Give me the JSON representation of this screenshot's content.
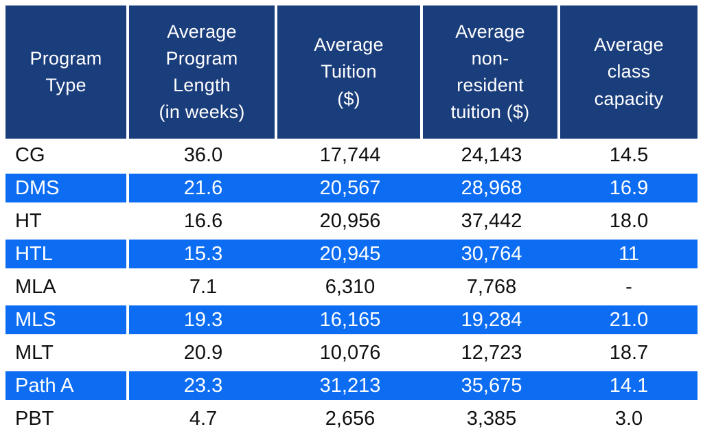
{
  "colors": {
    "header_navy": "#1a3d7c",
    "highlight_blue": "#0d6df2",
    "body_text": "#101010",
    "header_text": "#ffffff"
  },
  "table": {
    "columns": [
      {
        "label": "Program\nType"
      },
      {
        "label": "Average\nProgram\nLength\n(in weeks)"
      },
      {
        "label": "Average\nTuition\n($)"
      },
      {
        "label": "Average\nnon-\nresident\ntuition ($)"
      },
      {
        "label": "Average\nclass\ncapacity"
      }
    ],
    "rows": [
      {
        "cells": [
          "CG",
          "36.0",
          "17,744",
          "24,143",
          "14.5"
        ],
        "highlighted": false
      },
      {
        "cells": [
          "DMS",
          "21.6",
          "20,567",
          "28,968",
          "16.9"
        ],
        "highlighted": true
      },
      {
        "cells": [
          "HT",
          "16.6",
          "20,956",
          "37,442",
          "18.0"
        ],
        "highlighted": false
      },
      {
        "cells": [
          "HTL",
          "15.3",
          "20,945",
          "30,764",
          "11"
        ],
        "highlighted": true
      },
      {
        "cells": [
          "MLA",
          "7.1",
          "6,310",
          "7,768",
          "-"
        ],
        "highlighted": false
      },
      {
        "cells": [
          "MLS",
          "19.3",
          "16,165",
          "19,284",
          "21.0"
        ],
        "highlighted": true
      },
      {
        "cells": [
          "MLT",
          "20.9",
          "10,076",
          "12,723",
          "18.7"
        ],
        "highlighted": false
      },
      {
        "cells": [
          "Path A",
          "23.3",
          "31,213",
          "35,675",
          "14.1"
        ],
        "highlighted": true
      },
      {
        "cells": [
          "PBT",
          "4.7",
          "2,656",
          "3,385",
          "3.0"
        ],
        "highlighted": false
      }
    ]
  },
  "chart_data": {
    "type": "table",
    "title": "",
    "columns": [
      "Program Type",
      "Average Program Length (in weeks)",
      "Average Tuition ($)",
      "Average non-resident tuition ($)",
      "Average class capacity"
    ],
    "rows": [
      [
        "CG",
        36.0,
        17744,
        24143,
        14.5
      ],
      [
        "DMS",
        21.6,
        20567,
        28968,
        16.9
      ],
      [
        "HT",
        16.6,
        20956,
        37442,
        18.0
      ],
      [
        "HTL",
        15.3,
        20945,
        30764,
        11
      ],
      [
        "MLA",
        7.1,
        6310,
        7768,
        null
      ],
      [
        "MLS",
        19.3,
        16165,
        19284,
        21.0
      ],
      [
        "MLT",
        20.9,
        10076,
        12723,
        18.7
      ],
      [
        "Path A",
        23.3,
        31213,
        35675,
        14.1
      ],
      [
        "PBT",
        4.7,
        2656,
        3385,
        3.0
      ]
    ],
    "highlighted_rows": [
      "DMS",
      "HTL",
      "MLS",
      "Path A"
    ],
    "layout_hints": {
      "header_background": "#1a3d7c",
      "highlight_background": "#0d6df2",
      "alternating_highlight": true,
      "numeric_alignment": "center",
      "program_alignment": "left"
    }
  }
}
